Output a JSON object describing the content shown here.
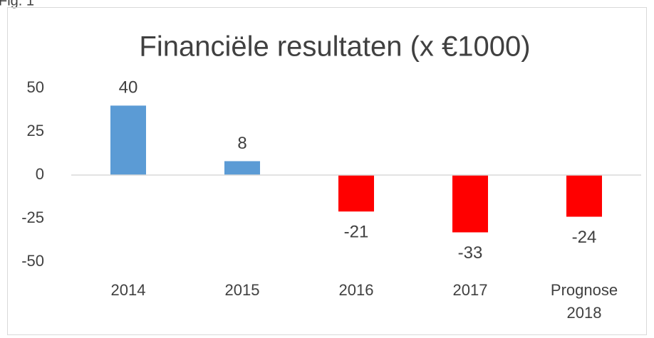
{
  "caption": "Fig. 1",
  "chart_data": {
    "type": "bar",
    "title": "Financiële resultaten (x €1000)",
    "categories": [
      "2014",
      "2015",
      "2016",
      "2017",
      "Prognose 2018"
    ],
    "values": [
      40,
      8,
      -21,
      -33,
      -24
    ],
    "colors": [
      "#5b9bd5",
      "#5b9bd5",
      "#ff0000",
      "#ff0000",
      "#ff0000"
    ],
    "ylim": [
      -50,
      50
    ],
    "yticks": [
      50,
      25,
      0,
      -25,
      -50
    ],
    "grid": false
  }
}
